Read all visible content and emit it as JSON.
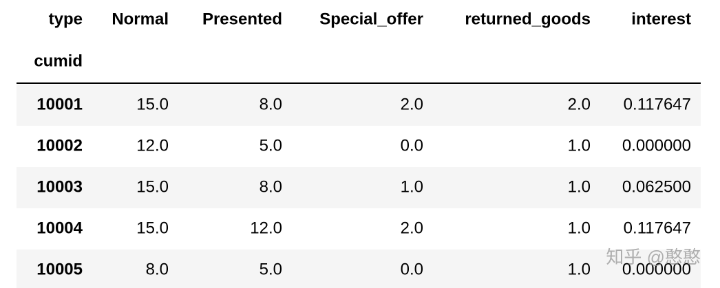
{
  "table": {
    "columns_name": "type",
    "columns": [
      "Normal",
      "Presented",
      "Special_offer",
      "returned_goods",
      "interest"
    ],
    "index_name": "cumid",
    "rows": [
      {
        "index": "10001",
        "values": [
          "15.0",
          "8.0",
          "2.0",
          "2.0",
          "0.117647"
        ]
      },
      {
        "index": "10002",
        "values": [
          "12.0",
          "5.0",
          "0.0",
          "1.0",
          "0.000000"
        ]
      },
      {
        "index": "10003",
        "values": [
          "15.0",
          "8.0",
          "1.0",
          "1.0",
          "0.062500"
        ]
      },
      {
        "index": "10004",
        "values": [
          "15.0",
          "12.0",
          "2.0",
          "1.0",
          "0.117647"
        ]
      },
      {
        "index": "10005",
        "values": [
          "8.0",
          "5.0",
          "0.0",
          "1.0",
          "0.000000"
        ]
      }
    ]
  },
  "watermark": "知乎 @憨憨"
}
